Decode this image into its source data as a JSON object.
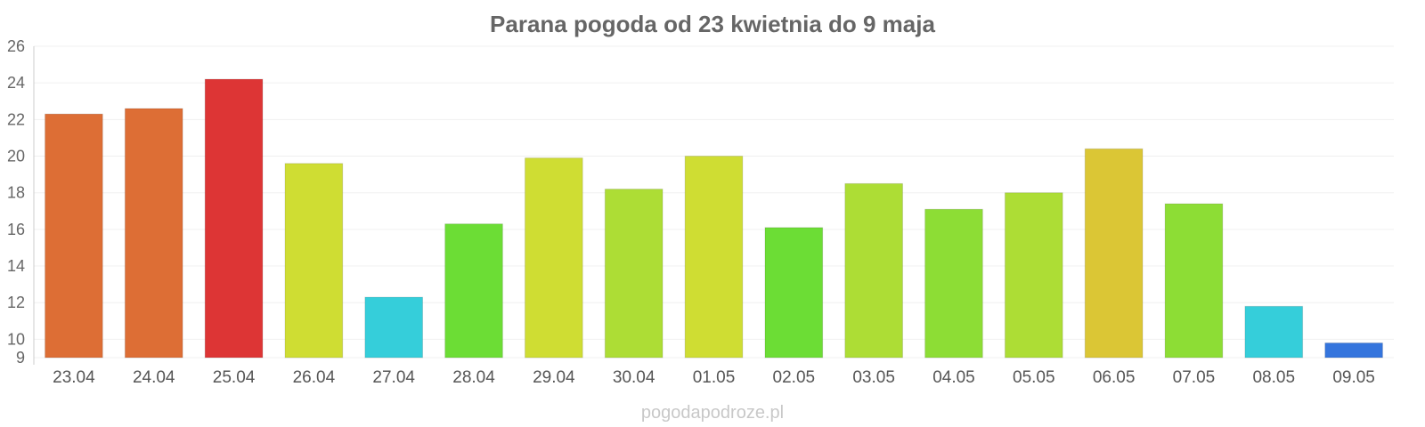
{
  "chart_data": {
    "type": "bar",
    "title": "Parana pogoda od 23 kwietnia do 9 maja",
    "watermark": "pogodapodroze.pl",
    "categories": [
      "23.04",
      "24.04",
      "25.04",
      "26.04",
      "27.04",
      "28.04",
      "29.04",
      "30.04",
      "01.05",
      "02.05",
      "03.05",
      "04.05",
      "05.05",
      "06.05",
      "07.05",
      "08.05",
      "09.05"
    ],
    "values": [
      22.3,
      22.6,
      24.2,
      19.6,
      12.3,
      16.3,
      19.9,
      18.2,
      20.0,
      16.1,
      18.5,
      17.1,
      18.0,
      20.4,
      17.4,
      11.8,
      9.8
    ],
    "colors": [
      "#dd6e35",
      "#dd6e35",
      "#dd3535",
      "#cfdd33",
      "#35ceda",
      "#6cdd35",
      "#cfdd33",
      "#addd35",
      "#cfdd33",
      "#6cdd35",
      "#addd35",
      "#8ddd35",
      "#addd35",
      "#dbc635",
      "#8ddd35",
      "#35ceda",
      "#3575dd"
    ],
    "y_ticks": [
      9,
      10,
      12,
      14,
      16,
      18,
      20,
      22,
      24,
      26
    ],
    "ylim": [
      9,
      26
    ],
    "grid": true
  }
}
